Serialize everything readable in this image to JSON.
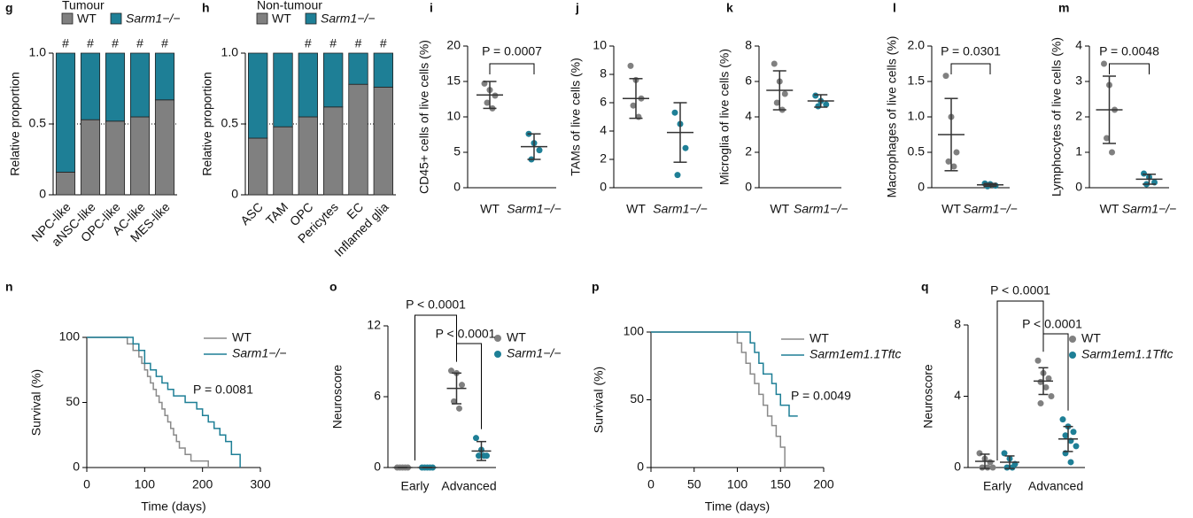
{
  "chart_data": [
    {
      "panel": "g",
      "type": "stacked_bar",
      "title": "Tumour",
      "categories": [
        "NPC-like",
        "aNSC-like",
        "OPC-like",
        "AC-like",
        "MES-like"
      ],
      "series": [
        {
          "name": "WT",
          "color": "#808080",
          "values": [
            0.16,
            0.53,
            0.52,
            0.55,
            0.67
          ]
        },
        {
          "name": "Sarm1−/−",
          "color": "#1e7f96",
          "values": [
            0.84,
            0.47,
            0.48,
            0.45,
            0.33
          ]
        }
      ],
      "markers": [
        "#",
        "#",
        "#",
        "#",
        "#"
      ],
      "ylabel": "Relative proportion",
      "ylim": [
        0,
        1
      ],
      "yticks": [
        0,
        0.5,
        {
          "value": 1,
          "label": "1.0"
        }
      ],
      "reference_line": 0.5
    },
    {
      "panel": "h",
      "type": "stacked_bar",
      "title": "Non-tumour",
      "categories": [
        "ASC",
        "TAM",
        "OPC",
        "Pericytes",
        "EC",
        "Inflamed glia"
      ],
      "series": [
        {
          "name": "WT",
          "color": "#808080",
          "values": [
            0.4,
            0.48,
            0.55,
            0.62,
            0.78,
            0.76
          ]
        },
        {
          "name": "Sarm1−/−",
          "color": "#1e7f96",
          "values": [
            0.6,
            0.52,
            0.45,
            0.38,
            0.22,
            0.24
          ]
        }
      ],
      "markers": [
        null,
        null,
        "#",
        "#",
        "#",
        "#"
      ],
      "ylabel": "Relative proportion",
      "ylim": [
        0,
        1
      ],
      "yticks": [
        0,
        0.5,
        {
          "value": 1,
          "label": "1.0"
        }
      ],
      "reference_line": 0.5
    },
    {
      "panel": "i",
      "type": "dot",
      "categories": [
        "WT",
        "Sarm1−/−"
      ],
      "groups": [
        {
          "color": "#808080",
          "values": [
            14.7,
            13.8,
            13.0,
            12.0,
            11.2
          ],
          "mean": 13.1,
          "sd": 1.9
        },
        {
          "color": "#1e7f96",
          "values": [
            7.6,
            6.3,
            5.3,
            4.0
          ],
          "mean": 5.8,
          "sd": 1.8
        }
      ],
      "ylabel": "CD45+ cells of live cells (%)",
      "ylim": [
        0,
        20
      ],
      "yticks": [
        0,
        5,
        10,
        15,
        20
      ],
      "annotation": "P = 0.0007"
    },
    {
      "panel": "j",
      "type": "dot",
      "categories": [
        "WT",
        "Sarm1−/−"
      ],
      "groups": [
        {
          "color": "#808080",
          "values": [
            8.6,
            7.6,
            6.3,
            5.8,
            5.0
          ],
          "mean": 6.3,
          "sd": 1.4
        },
        {
          "color": "#1e7f96",
          "values": [
            5.3,
            4.5,
            2.8,
            0.9
          ],
          "mean": 3.9,
          "sd": 2.1
        }
      ],
      "ylabel": "TAMs of live cells (%)",
      "ylim": [
        0,
        10
      ],
      "yticks": [
        0,
        2,
        4,
        6,
        8,
        10
      ]
    },
    {
      "panel": "k",
      "type": "dot",
      "categories": [
        "WT",
        "Sarm1−/−"
      ],
      "groups": [
        {
          "color": "#808080",
          "values": [
            7.0,
            6.0,
            5.3,
            4.8,
            4.4
          ],
          "mean": 5.5,
          "sd": 1.1
        },
        {
          "color": "#1e7f96",
          "values": [
            5.2,
            4.9,
            4.7,
            4.6
          ],
          "mean": 4.9,
          "sd": 0.35
        }
      ],
      "ylabel": "Microglia of live cells (%)",
      "ylim": [
        0,
        8
      ],
      "yticks": [
        0,
        2,
        4,
        6,
        8
      ]
    },
    {
      "panel": "l",
      "type": "dot",
      "categories": [
        "WT",
        "Sarm1−/−"
      ],
      "groups": [
        {
          "color": "#808080",
          "values": [
            1.58,
            1.0,
            0.5,
            0.37,
            0.3
          ],
          "mean": 0.75,
          "sd": 0.51
        },
        {
          "color": "#1e7f96",
          "values": [
            0.06,
            0.05,
            0.03,
            0.02
          ],
          "mean": 0.04,
          "sd": 0.02
        }
      ],
      "ylabel": "Macrophages of live cells (%)",
      "ylim": [
        0,
        2
      ],
      "yticks": [
        0,
        0.5,
        {
          "value": 1,
          "label": "1.0"
        },
        1.5,
        {
          "value": 2,
          "label": "2.0"
        }
      ],
      "annotation": "P = 0.0301"
    },
    {
      "panel": "m",
      "type": "dot",
      "categories": [
        "WT",
        "Sarm1−/−"
      ],
      "groups": [
        {
          "color": "#808080",
          "values": [
            3.5,
            2.9,
            2.2,
            1.4,
            1.0
          ],
          "mean": 2.2,
          "sd": 0.95
        },
        {
          "color": "#1e7f96",
          "values": [
            0.4,
            0.3,
            0.15,
            0.1
          ],
          "mean": 0.24,
          "sd": 0.14
        }
      ],
      "ylabel": "Lymphocytes of live cells (%)",
      "ylim": [
        0,
        4
      ],
      "yticks": [
        0,
        1,
        2,
        3,
        4
      ],
      "annotation": "P = 0.0048"
    },
    {
      "panel": "n",
      "type": "survival",
      "series": [
        {
          "name": "WT",
          "color": "#8a8a8a",
          "x": [
            0,
            55,
            70,
            80,
            90,
            95,
            100,
            105,
            110,
            115,
            120,
            125,
            130,
            135,
            140,
            145,
            150,
            155,
            160,
            170,
            180,
            190,
            210
          ],
          "values": [
            100,
            100,
            95,
            90,
            85,
            80,
            75,
            70,
            65,
            60,
            55,
            50,
            45,
            40,
            35,
            30,
            25,
            20,
            15,
            10,
            5,
            5,
            0
          ]
        },
        {
          "name": "Sarm1−/−",
          "color": "#1e7f96",
          "x": [
            0,
            80,
            90,
            100,
            110,
            120,
            130,
            140,
            150,
            160,
            170,
            180,
            190,
            200,
            210,
            220,
            230,
            240,
            250,
            265
          ],
          "values": [
            100,
            95,
            90,
            80,
            75,
            70,
            65,
            60,
            55,
            55,
            50,
            50,
            45,
            40,
            35,
            30,
            25,
            20,
            10,
            0
          ]
        }
      ],
      "xlabel": "Time (days)",
      "ylabel": "Survival (%)",
      "xlim": [
        0,
        300
      ],
      "xticks": [
        0,
        100,
        200,
        300
      ],
      "ylim": [
        0,
        100
      ],
      "yticks": [
        0,
        50,
        100
      ],
      "annotation": "P = 0.0081"
    },
    {
      "panel": "o",
      "type": "grouped_dot",
      "categories": [
        "Early",
        "Advanced"
      ],
      "series": [
        {
          "name": "WT",
          "color": "#808080",
          "values": [
            [
              0,
              0,
              0,
              0,
              0
            ],
            [
              8.2,
              8.0,
              7.0,
              5.6,
              5.0
            ]
          ],
          "mean": [
            0,
            6.7
          ],
          "sd": [
            0,
            1.3
          ]
        },
        {
          "name": "Sarm1−/−",
          "color": "#1e7f96",
          "values": [
            [
              0,
              0,
              0,
              0,
              0
            ],
            [
              2.5,
              1.5,
              1.0,
              1.0,
              1.0
            ]
          ],
          "mean": [
            0,
            1.4
          ],
          "sd": [
            0,
            0.8
          ]
        }
      ],
      "ylabel": "Neuroscore",
      "ylim": [
        0,
        12
      ],
      "yticks": [
        0,
        6,
        12
      ],
      "annotations": [
        "P < 0.0001",
        "P < 0.0001"
      ]
    },
    {
      "panel": "p",
      "type": "survival",
      "series": [
        {
          "name": "WT",
          "color": "#8a8a8a",
          "x": [
            0,
            95,
            100,
            105,
            110,
            115,
            120,
            125,
            130,
            135,
            140,
            145,
            150,
            155
          ],
          "values": [
            100,
            100,
            92,
            85,
            77,
            69,
            62,
            54,
            46,
            38,
            31,
            23,
            15,
            0
          ]
        },
        {
          "name": "Sarm1em1.1Tftc",
          "color": "#1e7f96",
          "x": [
            0,
            115,
            120,
            125,
            130,
            140,
            145,
            150,
            160,
            170
          ],
          "values": [
            100,
            92,
            85,
            77,
            69,
            62,
            54,
            46,
            38,
            38
          ]
        }
      ],
      "xlabel": "Time (days)",
      "ylabel": "Survival (%)",
      "xlim": [
        0,
        200
      ],
      "xticks": [
        0,
        50,
        100,
        150,
        200
      ],
      "ylim": [
        0,
        100
      ],
      "yticks": [
        0,
        50,
        100
      ],
      "annotation": "P = 0.0049"
    },
    {
      "panel": "q",
      "type": "grouped_dot",
      "categories": [
        "Early",
        "Advanced"
      ],
      "series": [
        {
          "name": "WT",
          "color": "#808080",
          "values": [
            [
              0.8,
              0.5,
              0.3,
              0,
              0,
              0
            ],
            [
              6.0,
              5.3,
              5.0,
              4.8,
              4.5,
              4.0,
              3.6
            ]
          ],
          "mean": [
            0.35,
            4.85
          ],
          "sd": [
            0.4,
            0.75
          ]
        },
        {
          "name": "Sarm1em1.1Tftc",
          "color": "#1e7f96",
          "values": [
            [
              0.8,
              0.5,
              0.2,
              0,
              0
            ],
            [
              2.7,
              2.3,
              2.0,
              1.8,
              1.5,
              1.2,
              0.8,
              0.3
            ]
          ],
          "mean": [
            0.3,
            1.6
          ],
          "sd": [
            0.35,
            0.7
          ]
        }
      ],
      "ylabel": "Neuroscore",
      "ylim": [
        0,
        8
      ],
      "yticks": [
        0,
        4,
        8
      ],
      "annotations": [
        "P < 0.0001",
        "P < 0.0001"
      ]
    }
  ]
}
